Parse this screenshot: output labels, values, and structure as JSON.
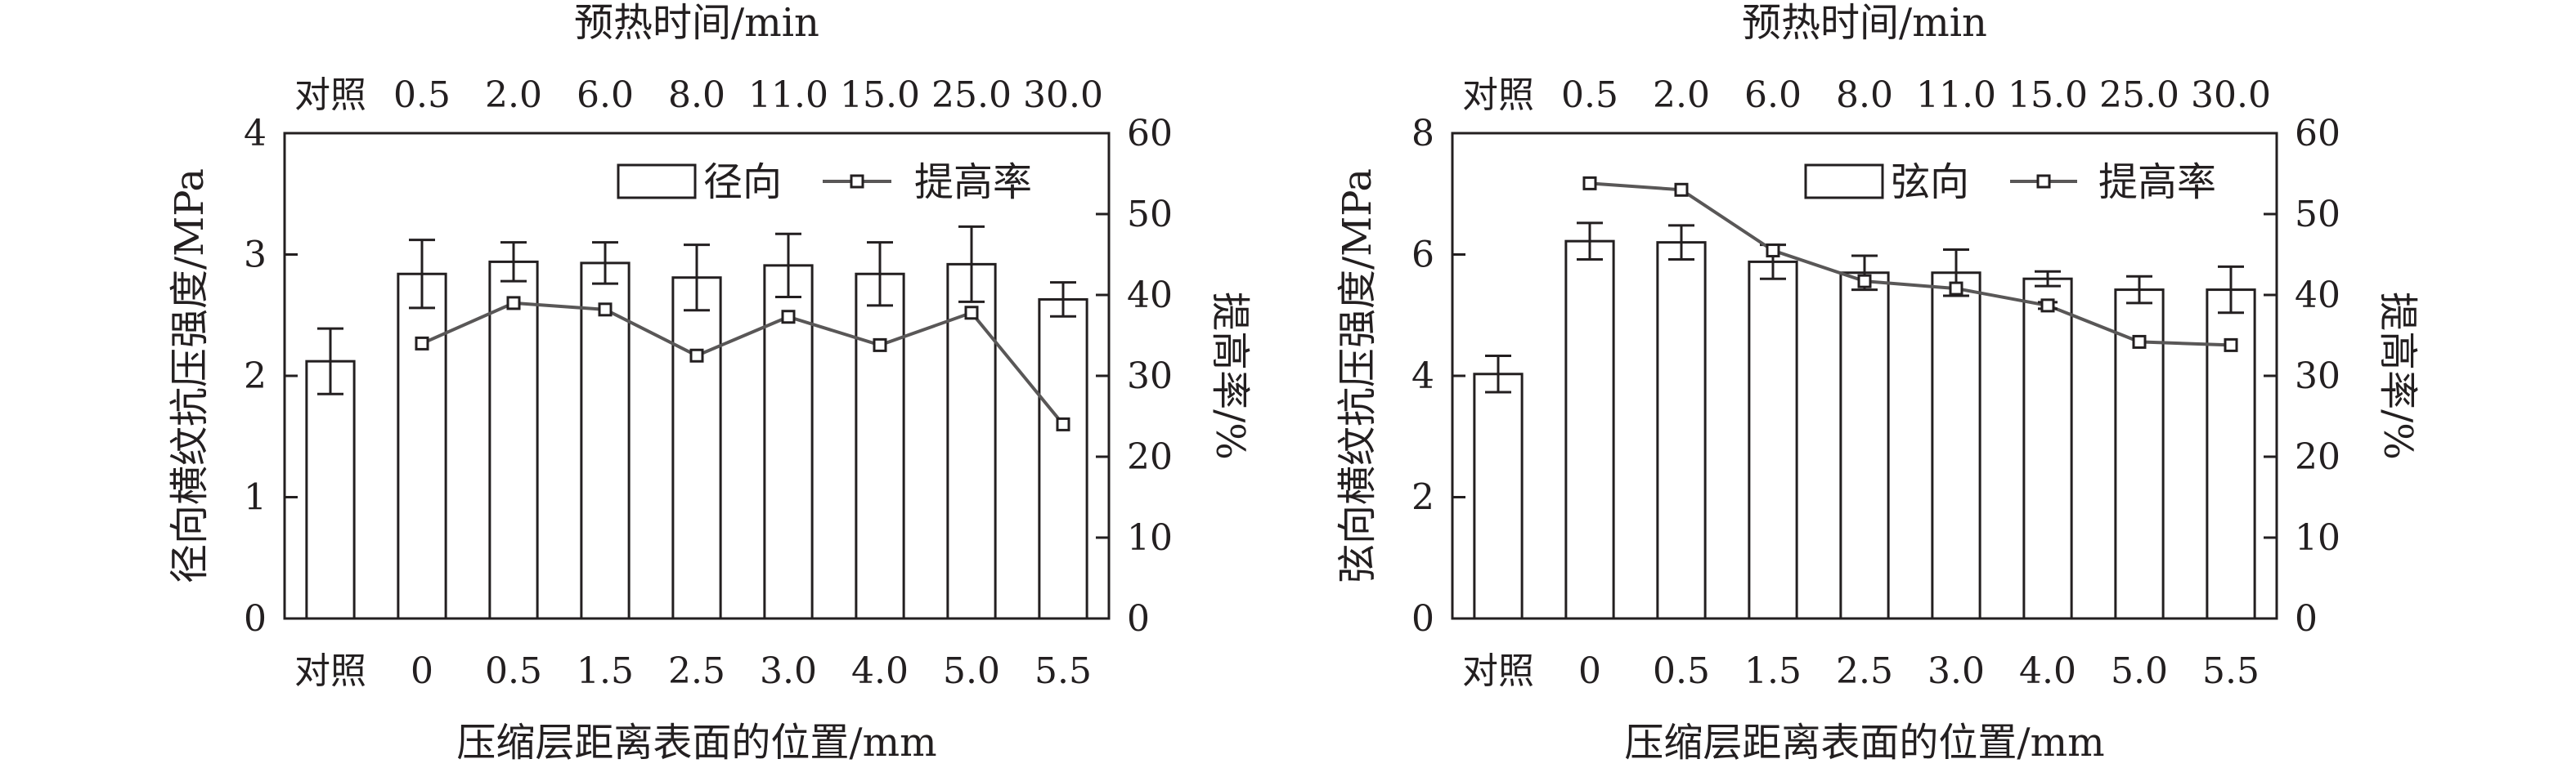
{
  "chart_data": [
    {
      "type": "bar",
      "top_axis_title": "预热时间/min",
      "top_ticks": [
        "对照",
        "0.5",
        "2.0",
        "6.0",
        "8.0",
        "11.0",
        "15.0",
        "25.0",
        "30.0"
      ],
      "categories": [
        "对照",
        "0",
        "0.5",
        "1.5",
        "2.5",
        "3.0",
        "4.0",
        "5.0",
        "5.5"
      ],
      "xlabel": "压缩层距离表面的位置/mm",
      "ylabel": "径向横纹抗压强度/MPa",
      "ylabel_right": "提高率/%",
      "ylim": [
        0,
        4
      ],
      "yticks": [
        "0",
        "1",
        "2",
        "3",
        "4"
      ],
      "ylim_right": [
        0,
        60
      ],
      "yticks_right": [
        "0",
        "10",
        "20",
        "30",
        "40",
        "50",
        "60"
      ],
      "legend": {
        "bar_label": "径向",
        "line_label": "提高率",
        "position": "top-right"
      },
      "series": [
        {
          "name": "径向",
          "kind": "bar",
          "values": [
            2.12,
            2.84,
            2.94,
            2.93,
            2.81,
            2.91,
            2.84,
            2.92,
            2.63
          ],
          "errors": [
            0.27,
            0.28,
            0.16,
            0.17,
            0.27,
            0.26,
            0.26,
            0.31,
            0.14
          ]
        },
        {
          "name": "提高率",
          "kind": "line",
          "values": [
            null,
            34.0,
            39.0,
            38.2,
            32.5,
            37.3,
            33.8,
            37.8,
            24.0
          ],
          "errors": [
            null,
            0,
            0,
            0,
            0,
            0,
            0,
            0,
            0
          ]
        }
      ]
    },
    {
      "type": "bar",
      "top_axis_title": "预热时间/min",
      "top_ticks": [
        "对照",
        "0.5",
        "2.0",
        "6.0",
        "8.0",
        "11.0",
        "15.0",
        "25.0",
        "30.0"
      ],
      "categories": [
        "对照",
        "0",
        "0.5",
        "1.5",
        "2.5",
        "3.0",
        "4.0",
        "5.0",
        "5.5"
      ],
      "xlabel": "压缩层距离表面的位置/mm",
      "ylabel": "弦向横纹抗压强度/MPa",
      "ylabel_right": "提高率/%",
      "ylim": [
        0,
        8
      ],
      "yticks": [
        "0",
        "2",
        "4",
        "6",
        "8"
      ],
      "ylim_right": [
        0,
        60
      ],
      "yticks_right": [
        "0",
        "10",
        "20",
        "30",
        "40",
        "50",
        "60"
      ],
      "legend": {
        "bar_label": "弦向",
        "line_label": "提高率",
        "position": "top-right"
      },
      "series": [
        {
          "name": "弦向",
          "kind": "bar",
          "values": [
            4.03,
            6.22,
            6.2,
            5.88,
            5.7,
            5.7,
            5.6,
            5.42,
            5.42
          ],
          "errors": [
            0.3,
            0.3,
            0.28,
            0.28,
            0.28,
            0.38,
            0.12,
            0.22,
            0.38
          ]
        },
        {
          "name": "提高率",
          "kind": "line",
          "values": [
            null,
            53.8,
            53.0,
            45.5,
            41.7,
            40.8,
            38.7,
            34.2,
            33.8
          ],
          "errors": [
            null,
            0,
            0,
            0,
            0,
            0,
            0.4,
            0,
            0
          ]
        }
      ]
    }
  ]
}
